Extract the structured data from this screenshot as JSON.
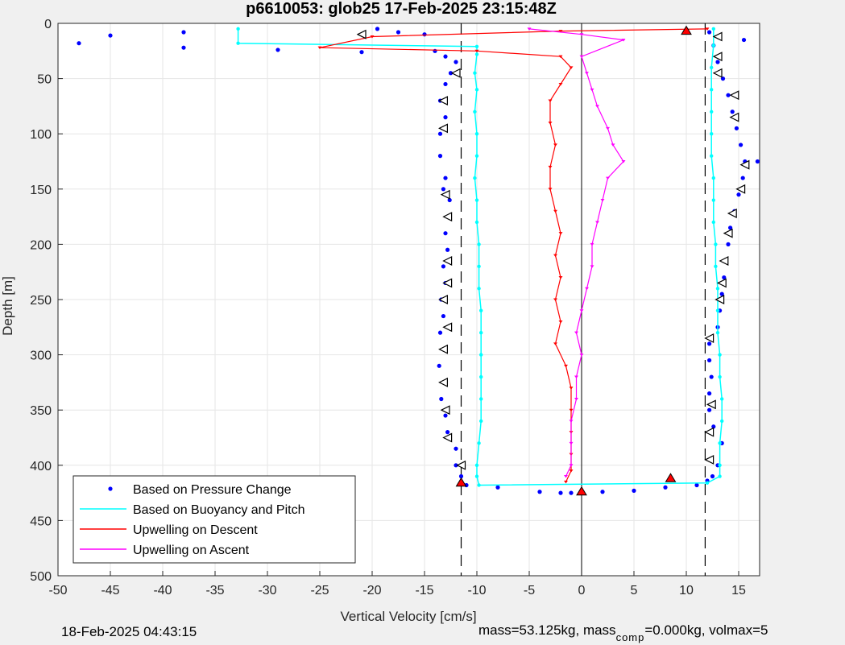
{
  "chart_data": {
    "type": "scatter",
    "title": "p6610053: glob25 17-Feb-2025 23:15:48Z",
    "xlabel": "Vertical Velocity [cm/s]",
    "ylabel": "Depth [m]",
    "xlim": [
      -50,
      17
    ],
    "ylim": [
      0,
      500
    ],
    "y_reversed": true,
    "grid": true,
    "xticks": [
      -50,
      -45,
      -40,
      -35,
      -30,
      -25,
      -20,
      -15,
      -10,
      -5,
      0,
      5,
      10,
      15
    ],
    "yticks": [
      0,
      50,
      100,
      150,
      200,
      250,
      300,
      350,
      400,
      450,
      500
    ],
    "legend_position": "bottom-left",
    "reference_lines": {
      "dashed_x": [
        -11.5,
        11.8
      ],
      "solid_x": [
        0
      ]
    },
    "series": [
      {
        "name": "Based on Pressure Change",
        "style": "dots",
        "color": "#0000ff",
        "descent": [
          [
            -48,
            18
          ],
          [
            -45,
            11
          ],
          [
            -38,
            8
          ],
          [
            -38,
            22
          ],
          [
            -29,
            24
          ],
          [
            -21,
            26
          ],
          [
            -19.5,
            5
          ],
          [
            -17.5,
            8
          ],
          [
            -15,
            10
          ],
          [
            -14,
            25
          ],
          [
            -13,
            30
          ],
          [
            -12,
            35
          ],
          [
            -12.5,
            45
          ],
          [
            -13,
            55
          ],
          [
            -13.5,
            70
          ],
          [
            -13,
            85
          ],
          [
            -13.5,
            100
          ],
          [
            -13.5,
            120
          ],
          [
            -13,
            140
          ],
          [
            -13.2,
            150
          ],
          [
            -12.6,
            160
          ],
          [
            -12.8,
            175
          ],
          [
            -13,
            190
          ],
          [
            -12.8,
            205
          ],
          [
            -13.2,
            220
          ],
          [
            -13,
            235
          ],
          [
            -13.4,
            250
          ],
          [
            -13.2,
            265
          ],
          [
            -13.5,
            280
          ],
          [
            -13.2,
            295
          ],
          [
            -13.6,
            310
          ],
          [
            -13.2,
            325
          ],
          [
            -13.4,
            340
          ],
          [
            -13,
            355
          ],
          [
            -12.8,
            370
          ],
          [
            -12,
            385
          ],
          [
            -12,
            400
          ],
          [
            -11.5,
            410
          ],
          [
            -11,
            418
          ]
        ],
        "bottom": [
          [
            -8,
            420
          ],
          [
            -4,
            424
          ],
          [
            -2,
            425
          ],
          [
            -1,
            425
          ],
          [
            0,
            425
          ],
          [
            2,
            424
          ],
          [
            5,
            423
          ],
          [
            8,
            420
          ],
          [
            11,
            418
          ],
          [
            12,
            414
          ]
        ],
        "ascent": [
          [
            12.5,
            410
          ],
          [
            13,
            400
          ],
          [
            13.4,
            380
          ],
          [
            12.6,
            365
          ],
          [
            12.2,
            350
          ],
          [
            12.2,
            335
          ],
          [
            12.4,
            320
          ],
          [
            12.2,
            305
          ],
          [
            12.2,
            290
          ],
          [
            13,
            275
          ],
          [
            13.2,
            260
          ],
          [
            13.4,
            245
          ],
          [
            13.6,
            230
          ],
          [
            13.8,
            215
          ],
          [
            14,
            200
          ],
          [
            14.2,
            185
          ],
          [
            14.6,
            170
          ],
          [
            15,
            155
          ],
          [
            15.4,
            140
          ],
          [
            15.6,
            125
          ],
          [
            15.2,
            110
          ],
          [
            14.8,
            95
          ],
          [
            14.4,
            80
          ],
          [
            14,
            65
          ],
          [
            13.5,
            50
          ],
          [
            13,
            35
          ],
          [
            12.6,
            20
          ],
          [
            12.2,
            8
          ],
          [
            16.8,
            125
          ],
          [
            15.5,
            15
          ]
        ]
      },
      {
        "name": "Based on Buoyancy and Pitch",
        "style": "line",
        "color": "#00ffff",
        "points": [
          [
            -32.8,
            5
          ],
          [
            -32.8,
            18
          ],
          [
            -10,
            21
          ],
          [
            -10,
            28
          ],
          [
            -10.2,
            45
          ],
          [
            -10,
            60
          ],
          [
            -10.2,
            80
          ],
          [
            -10,
            100
          ],
          [
            -10,
            120
          ],
          [
            -10.2,
            140
          ],
          [
            -10,
            160
          ],
          [
            -10,
            180
          ],
          [
            -9.8,
            200
          ],
          [
            -9.8,
            220
          ],
          [
            -9.8,
            240
          ],
          [
            -9.6,
            260
          ],
          [
            -9.6,
            280
          ],
          [
            -9.6,
            300
          ],
          [
            -9.6,
            320
          ],
          [
            -9.6,
            340
          ],
          [
            -9.6,
            360
          ],
          [
            -9.8,
            380
          ],
          [
            -10,
            400
          ],
          [
            -10,
            410
          ],
          [
            -9.8,
            418
          ],
          [
            12,
            416
          ],
          [
            13.2,
            410
          ],
          [
            13.2,
            400
          ],
          [
            13.2,
            380
          ],
          [
            13.4,
            360
          ],
          [
            13.4,
            340
          ],
          [
            13.2,
            320
          ],
          [
            13.2,
            300
          ],
          [
            13,
            280
          ],
          [
            13,
            260
          ],
          [
            13,
            240
          ],
          [
            12.8,
            220
          ],
          [
            12.8,
            200
          ],
          [
            12.6,
            180
          ],
          [
            12.6,
            160
          ],
          [
            12.6,
            140
          ],
          [
            12.4,
            120
          ],
          [
            12.4,
            100
          ],
          [
            12.4,
            80
          ],
          [
            12.4,
            60
          ],
          [
            12.4,
            40
          ],
          [
            12.6,
            20
          ],
          [
            12.6,
            5
          ]
        ]
      },
      {
        "name": "Upwelling on Descent",
        "style": "line-markers",
        "color": "#ff0000",
        "points": [
          [
            12,
            5
          ],
          [
            -2,
            7
          ],
          [
            -20,
            12
          ],
          [
            -25,
            22
          ],
          [
            -10,
            25
          ],
          [
            -2,
            30
          ],
          [
            -1,
            40
          ],
          [
            -2,
            55
          ],
          [
            -3,
            70
          ],
          [
            -3,
            90
          ],
          [
            -2.5,
            110
          ],
          [
            -3,
            130
          ],
          [
            -3,
            150
          ],
          [
            -2.5,
            170
          ],
          [
            -2,
            190
          ],
          [
            -2.5,
            210
          ],
          [
            -2,
            230
          ],
          [
            -2.5,
            250
          ],
          [
            -2,
            270
          ],
          [
            -2.5,
            290
          ],
          [
            -1.5,
            310
          ],
          [
            -1,
            330
          ],
          [
            -1,
            350
          ],
          [
            -1,
            370
          ],
          [
            -1,
            390
          ],
          [
            -1,
            405
          ],
          [
            -1.5,
            415
          ]
        ]
      },
      {
        "name": "Upwelling on Ascent",
        "style": "line-markers",
        "color": "#ff00ff",
        "points": [
          [
            -5,
            5
          ],
          [
            0,
            10
          ],
          [
            4,
            15
          ],
          [
            0,
            30
          ],
          [
            0.5,
            45
          ],
          [
            1,
            60
          ],
          [
            1.5,
            75
          ],
          [
            2.5,
            95
          ],
          [
            3,
            110
          ],
          [
            4,
            125
          ],
          [
            2.5,
            140
          ],
          [
            2,
            160
          ],
          [
            1.5,
            180
          ],
          [
            1,
            200
          ],
          [
            1,
            220
          ],
          [
            0.5,
            240
          ],
          [
            0,
            260
          ],
          [
            -0.5,
            280
          ],
          [
            0,
            300
          ],
          [
            -0.5,
            320
          ],
          [
            -0.5,
            340
          ],
          [
            -1,
            360
          ],
          [
            -1,
            380
          ],
          [
            -1,
            400
          ],
          [
            -1.5,
            410
          ]
        ]
      }
    ],
    "markers": {
      "triangles_left_open": [
        [
          -21,
          10
        ],
        [
          -12,
          45
        ],
        [
          -13.2,
          70
        ],
        [
          -13.2,
          95
        ],
        [
          -13,
          155
        ],
        [
          -12.8,
          175
        ],
        [
          -12.8,
          215
        ],
        [
          -12.8,
          235
        ],
        [
          -13.2,
          250
        ],
        [
          -12.8,
          275
        ],
        [
          -13.2,
          295
        ],
        [
          -13.2,
          325
        ],
        [
          -13,
          350
        ],
        [
          -12.8,
          375
        ],
        [
          -11.5,
          400
        ],
        [
          13,
          12
        ],
        [
          13,
          30
        ],
        [
          13,
          45
        ],
        [
          14.6,
          65
        ],
        [
          14.6,
          85
        ],
        [
          15.6,
          128
        ],
        [
          15.2,
          150
        ],
        [
          14.4,
          172
        ],
        [
          14,
          190
        ],
        [
          13.6,
          215
        ],
        [
          13.4,
          235
        ],
        [
          13.2,
          250
        ],
        [
          12.2,
          285
        ],
        [
          12.4,
          345
        ],
        [
          12.2,
          370
        ],
        [
          12.2,
          395
        ]
      ],
      "red_markers": [
        [
          10,
          7
        ],
        [
          -11.5,
          416
        ],
        [
          0,
          424
        ],
        [
          8.5,
          412
        ]
      ]
    }
  },
  "footer": {
    "datetime": "18-Feb-2025 04:43:15",
    "mass_text": "mass=53.125kg, mass",
    "comp_subscript": "comp",
    "comp_text": "=0.000kg, volmax=5"
  }
}
